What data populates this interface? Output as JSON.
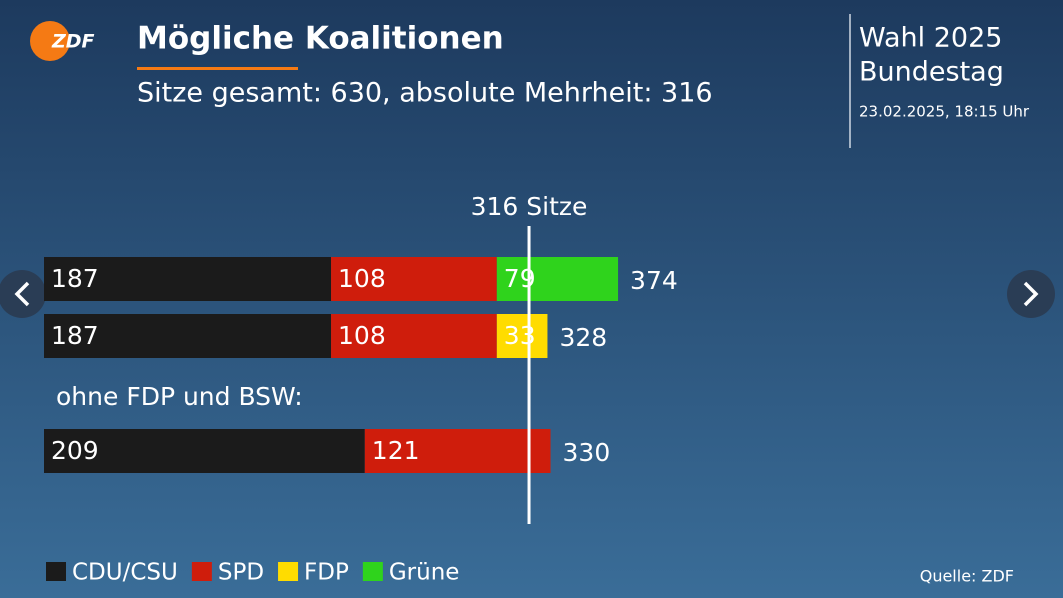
{
  "logo": "ZDF",
  "header": {
    "title": "Mögliche Koalitionen",
    "subtitle": "Sitze gesamt: 630, absolute Mehrheit: 316"
  },
  "sidebar": {
    "line1": "Wahl 2025",
    "line2": "Bundestag",
    "timestamp": "23.02.2025, 18:15 Uhr"
  },
  "source": "Quelle: ZDF",
  "chart_data": {
    "type": "stacked-bar-horizontal",
    "categories": [
      null,
      null,
      null
    ],
    "series": [
      {
        "name": "CDU/CSU",
        "color": "#1b1b1b",
        "values": [
          187,
          187,
          209
        ]
      },
      {
        "name": "SPD",
        "color": "#cf1d0c",
        "values": [
          108,
          108,
          121
        ]
      },
      {
        "name": "FDP",
        "color": "#ffdc00",
        "values": [
          null,
          33,
          null
        ]
      },
      {
        "name": "Grüne",
        "color": "#2fd31c",
        "values": [
          79,
          null,
          null
        ]
      }
    ],
    "totals": [
      374,
      328,
      330
    ],
    "annotation": "ohne FDP und BSW:",
    "reference": {
      "value": 316,
      "label": "316 Sitze"
    },
    "xlim": [
      0,
      630
    ],
    "legend": "bottom-left"
  }
}
